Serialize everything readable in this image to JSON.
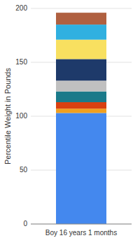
{
  "chart_data": {
    "type": "bar",
    "stacked": true,
    "grid": true,
    "ylabel": "Percentile Weight in Pounds",
    "categories": [
      "Boy 16 years 1 months"
    ],
    "ylim": [
      0,
      200
    ],
    "yticks": [
      0,
      50,
      100,
      150,
      200
    ],
    "series": [
      {
        "color": "#4488ee",
        "values": [
          103
        ]
      },
      {
        "color": "#f0a020",
        "values": [
          4
        ]
      },
      {
        "color": "#d94010",
        "values": [
          6
        ]
      },
      {
        "color": "#1a7a8a",
        "values": [
          10
        ]
      },
      {
        "color": "#c0c0c0",
        "values": [
          10
        ]
      },
      {
        "color": "#1e3a6a",
        "values": [
          20
        ]
      },
      {
        "color": "#f8e060",
        "values": [
          18
        ]
      },
      {
        "color": "#30b0e0",
        "values": [
          14
        ]
      },
      {
        "color": "#b06040",
        "values": [
          11
        ]
      }
    ]
  }
}
